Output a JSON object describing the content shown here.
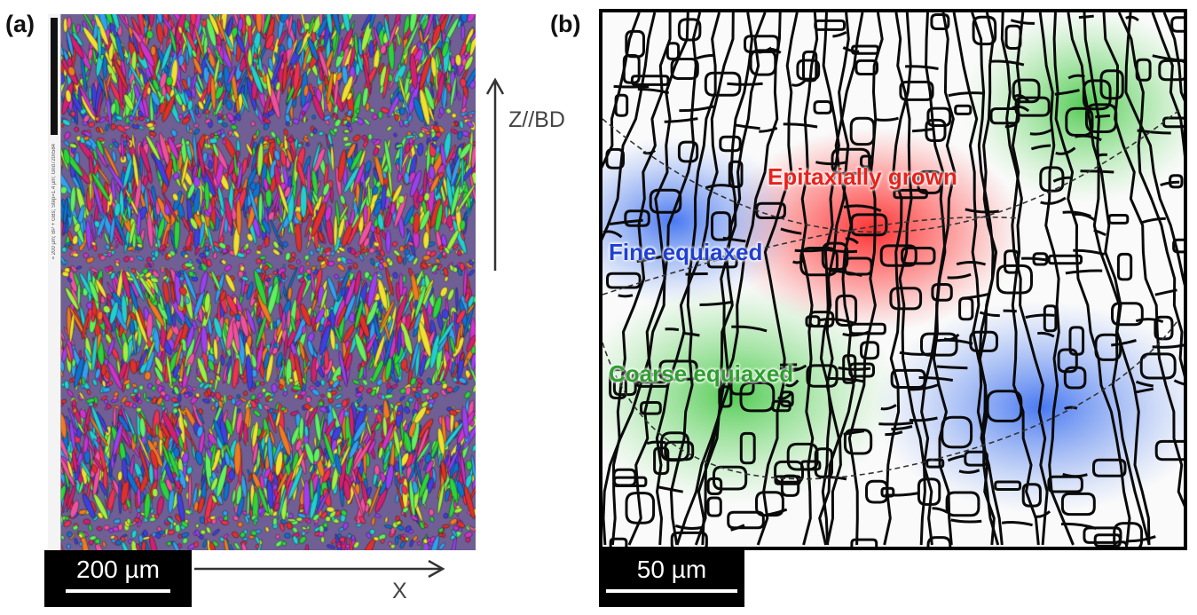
{
  "panel_a": {
    "label": "(a)",
    "sidebar_text": "= 200 µm; BP + GBs; Step=1.4 µm; Grid720x584",
    "scale_bar": "200 µm",
    "axis_vertical": "Z//BD",
    "axis_horizontal": "X"
  },
  "panel_b": {
    "label": "(b)",
    "scale_bar": "50 µm",
    "zones": [
      {
        "name": "Epitaxially grown",
        "color": "#e8221b"
      },
      {
        "name": "Fine equiaxed",
        "color": "#1f3fd1"
      },
      {
        "name": "Coarse equiaxed",
        "color": "#2f9e2f"
      }
    ]
  }
}
